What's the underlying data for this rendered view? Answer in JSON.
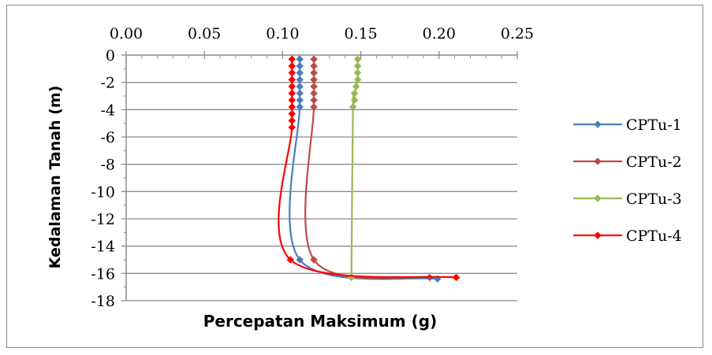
{
  "chart_data": {
    "type": "line",
    "title": "",
    "xlabel": "Percepatan Maksimum (g)",
    "ylabel": "Kedalaman Tanah (m)",
    "xlim": [
      0,
      0.25
    ],
    "ylim": [
      -18,
      0
    ],
    "x_ticks": [
      "0.00",
      "0.05",
      "0.10",
      "0.15",
      "0.20",
      "0.25"
    ],
    "y_ticks": [
      "0",
      "-2",
      "-4",
      "-6",
      "-8",
      "-10",
      "-12",
      "-14",
      "-16",
      "-18"
    ],
    "x_axis_position": "top",
    "grid": "horizontal",
    "legend_position": "right",
    "series": [
      {
        "name": "CPTu-1",
        "color": "#4a7ebb",
        "points": [
          [
            0.111,
            -0.3
          ],
          [
            0.111,
            -0.8
          ],
          [
            0.111,
            -1.3
          ],
          [
            0.111,
            -1.8
          ],
          [
            0.111,
            -2.3
          ],
          [
            0.111,
            -2.8
          ],
          [
            0.111,
            -3.3
          ],
          [
            0.111,
            -3.8
          ],
          [
            0.111,
            -15.0
          ],
          [
            0.199,
            -16.4
          ]
        ]
      },
      {
        "name": "CPTu-2",
        "color": "#be4b48",
        "points": [
          [
            0.12,
            -0.3
          ],
          [
            0.12,
            -0.8
          ],
          [
            0.12,
            -1.3
          ],
          [
            0.12,
            -1.8
          ],
          [
            0.12,
            -2.3
          ],
          [
            0.12,
            -2.8
          ],
          [
            0.12,
            -3.3
          ],
          [
            0.12,
            -3.8
          ],
          [
            0.12,
            -15.0
          ],
          [
            0.194,
            -16.3
          ]
        ]
      },
      {
        "name": "CPTu-3",
        "color": "#98b954",
        "points": [
          [
            0.148,
            -0.3
          ],
          [
            0.148,
            -0.8
          ],
          [
            0.148,
            -1.3
          ],
          [
            0.148,
            -1.8
          ],
          [
            0.147,
            -2.3
          ],
          [
            0.146,
            -2.8
          ],
          [
            0.146,
            -3.3
          ],
          [
            0.145,
            -3.8
          ],
          [
            0.144,
            -16.3
          ]
        ]
      },
      {
        "name": "CPTu-4",
        "color": "#ff0000",
        "points": [
          [
            0.106,
            -0.3
          ],
          [
            0.106,
            -0.8
          ],
          [
            0.106,
            -1.3
          ],
          [
            0.106,
            -1.8
          ],
          [
            0.106,
            -2.3
          ],
          [
            0.106,
            -2.8
          ],
          [
            0.106,
            -3.3
          ],
          [
            0.106,
            -3.8
          ],
          [
            0.106,
            -4.3
          ],
          [
            0.106,
            -4.8
          ],
          [
            0.106,
            -5.3
          ],
          [
            0.105,
            -15.0
          ],
          [
            0.211,
            -16.3
          ]
        ]
      }
    ]
  }
}
